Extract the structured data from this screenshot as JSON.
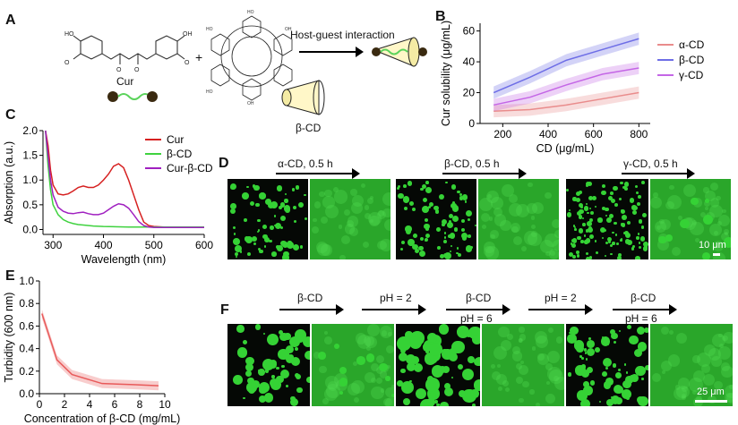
{
  "panels": {
    "A": {
      "label": "A",
      "cur_label": "Cur",
      "arrow_label": "Host-guest interaction",
      "cd_label": "β-CD",
      "plus": "+"
    },
    "B": {
      "label": "B"
    },
    "C": {
      "label": "C"
    },
    "D": {
      "label": "D",
      "arrows": [
        "α-CD, 0.5 h",
        "β-CD, 0.5 h",
        "γ-CD, 0.5 h"
      ],
      "scale": "10 μm"
    },
    "E": {
      "label": "E"
    },
    "F": {
      "label": "F",
      "arrows": [
        {
          "top": "β-CD",
          "bottom": ""
        },
        {
          "top": "pH = 2",
          "bottom": ""
        },
        {
          "top": "β-CD",
          "bottom": "pH = 6"
        },
        {
          "top": "pH = 2",
          "bottom": ""
        },
        {
          "top": "β-CD",
          "bottom": "pH = 6"
        }
      ],
      "scale": "25 μm"
    }
  },
  "chart_data": [
    {
      "id": "B",
      "type": "line",
      "xlabel": "CD (μg/mL)",
      "ylabel": "Cur solubility (μg/mL)",
      "x": [
        160,
        320,
        480,
        640,
        800
      ],
      "xlim": [
        100,
        850
      ],
      "ylim": [
        0,
        65
      ],
      "xticks": [
        200,
        400,
        600,
        800
      ],
      "yticks": [
        0,
        20,
        40,
        60
      ],
      "legend_position": "right",
      "series": [
        {
          "name": "α-CD",
          "color": "#e98c8c",
          "values": [
            8,
            9,
            12,
            16,
            20
          ],
          "band": 4
        },
        {
          "name": "β-CD",
          "color": "#6e6ee6",
          "values": [
            20,
            30,
            41,
            48,
            55
          ],
          "band": 4
        },
        {
          "name": "γ-CD",
          "color": "#c466e6",
          "values": [
            12,
            17,
            25,
            32,
            36
          ],
          "band": 4
        }
      ]
    },
    {
      "id": "C",
      "type": "line",
      "xlabel": "Wavelength (nm)",
      "ylabel": "Absorption (a.u.)",
      "xlim": [
        280,
        600
      ],
      "ylim": [
        -0.1,
        2.0
      ],
      "xticks": [
        300,
        400,
        500,
        600
      ],
      "yticks": [
        0.0,
        0.5,
        1.0,
        1.5,
        2.0
      ],
      "legend_position": "top-right",
      "series": [
        {
          "name": "Cur",
          "color": "#d62020",
          "x": [
            285,
            290,
            295,
            300,
            310,
            320,
            330,
            340,
            350,
            360,
            370,
            380,
            390,
            400,
            410,
            420,
            430,
            440,
            450,
            460,
            470,
            480,
            490,
            500,
            520,
            550,
            600
          ],
          "values": [
            2.0,
            1.7,
            1.2,
            0.9,
            0.72,
            0.7,
            0.72,
            0.78,
            0.85,
            0.88,
            0.85,
            0.85,
            0.9,
            1.0,
            1.12,
            1.28,
            1.33,
            1.25,
            1.0,
            0.7,
            0.4,
            0.15,
            0.08,
            0.06,
            0.05,
            0.05,
            0.05
          ]
        },
        {
          "name": "β-CD",
          "color": "#3fd23f",
          "x": [
            285,
            290,
            295,
            300,
            310,
            320,
            330,
            340,
            350,
            360,
            380,
            400,
            450,
            500,
            550,
            600
          ],
          "values": [
            2.0,
            1.3,
            0.8,
            0.5,
            0.3,
            0.2,
            0.15,
            0.12,
            0.1,
            0.09,
            0.07,
            0.06,
            0.05,
            0.05,
            0.05,
            0.05
          ]
        },
        {
          "name": "Cur-β-CD",
          "color": "#a020c0",
          "x": [
            285,
            290,
            295,
            300,
            310,
            320,
            330,
            340,
            350,
            360,
            370,
            380,
            390,
            400,
            410,
            420,
            430,
            440,
            450,
            460,
            470,
            480,
            490,
            500,
            550,
            600
          ],
          "values": [
            2.0,
            1.5,
            1.0,
            0.7,
            0.45,
            0.37,
            0.33,
            0.32,
            0.34,
            0.35,
            0.32,
            0.3,
            0.3,
            0.33,
            0.4,
            0.47,
            0.52,
            0.5,
            0.43,
            0.3,
            0.16,
            0.08,
            0.05,
            0.04,
            0.04,
            0.04
          ]
        }
      ]
    },
    {
      "id": "E",
      "type": "line",
      "xlabel": "Concentration of β-CD (mg/mL)",
      "ylabel": "Turbidity (600 nm)",
      "xlim": [
        0,
        10
      ],
      "ylim": [
        0,
        1.0
      ],
      "xticks": [
        0,
        2,
        4,
        6,
        8,
        10
      ],
      "yticks": [
        0.0,
        0.2,
        0.4,
        0.6,
        0.8,
        1.0
      ],
      "series": [
        {
          "name": "",
          "color": "#e85a5a",
          "x": [
            0.2,
            1.4,
            2.6,
            5.0,
            7.5,
            9.5
          ],
          "values": [
            0.71,
            0.3,
            0.17,
            0.09,
            0.08,
            0.07
          ],
          "band": 0.04
        }
      ]
    }
  ]
}
